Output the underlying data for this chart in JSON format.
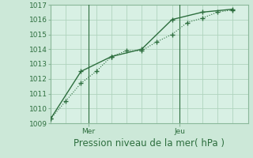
{
  "bg_color": "#cce8d8",
  "plot_bg_color": "#d8f0e4",
  "line_color": "#2d6e3e",
  "grid_color": "#b0d4be",
  "spine_color": "#8ab89a",
  "title": "Pression niveau de la mer( hPa )",
  "ylim": [
    1009,
    1017
  ],
  "yticks": [
    1009,
    1010,
    1011,
    1012,
    1013,
    1014,
    1015,
    1016,
    1017
  ],
  "xlim": [
    0,
    13
  ],
  "day_lines": [
    {
      "label": "Mer",
      "x": 2.5
    },
    {
      "label": "Jeu",
      "x": 8.5
    }
  ],
  "n_vgrid": 14,
  "series1_x": [
    0,
    1,
    2,
    3,
    4,
    5,
    6,
    7,
    8,
    9,
    10,
    11,
    12
  ],
  "series1_y": [
    1009.3,
    1010.5,
    1011.7,
    1012.5,
    1013.5,
    1013.9,
    1013.9,
    1014.5,
    1015.0,
    1015.8,
    1016.1,
    1016.5,
    1016.65
  ],
  "series2_x": [
    0,
    2,
    4,
    6,
    8,
    10,
    12
  ],
  "series2_y": [
    1009.3,
    1012.5,
    1013.5,
    1014.0,
    1016.0,
    1016.5,
    1016.7
  ],
  "title_fontsize": 8.5,
  "tick_fontsize": 6.5
}
